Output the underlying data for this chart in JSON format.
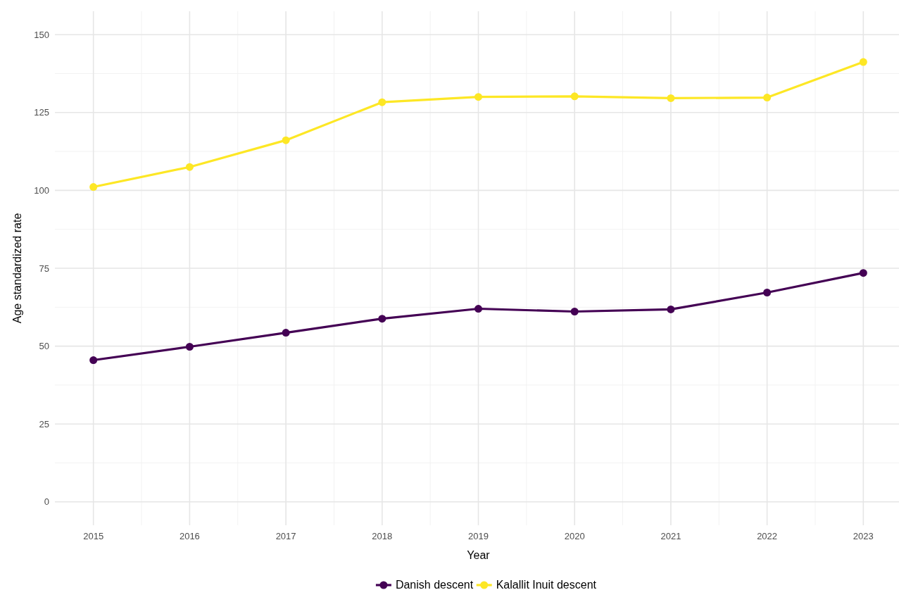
{
  "chart_data": {
    "type": "line",
    "xlabel": "Year",
    "ylabel": "Age standardized rate",
    "x": [
      2015,
      2016,
      2017,
      2018,
      2019,
      2020,
      2021,
      2022,
      2023
    ],
    "series": [
      {
        "name": "Danish descent",
        "color": "#440154",
        "values": [
          45.5,
          49.8,
          54.3,
          58.8,
          62.0,
          61.1,
          61.8,
          67.2,
          73.5
        ]
      },
      {
        "name": "Kalallit Inuit descent",
        "color": "#fde725",
        "values": [
          101.1,
          107.5,
          116.1,
          128.3,
          130.0,
          130.2,
          129.6,
          129.8,
          141.2
        ]
      }
    ],
    "xlim": [
      2014.6,
      2023.4
    ],
    "xticks": [
      2015,
      2016,
      2017,
      2018,
      2019,
      2020,
      2021,
      2022,
      2023
    ],
    "ylim": [
      -7.5,
      157.5
    ],
    "yticks": [
      0,
      25,
      50,
      75,
      100,
      125,
      150
    ],
    "grid": true,
    "legend": "bottom",
    "marker": "circle",
    "line_style": "solid"
  }
}
